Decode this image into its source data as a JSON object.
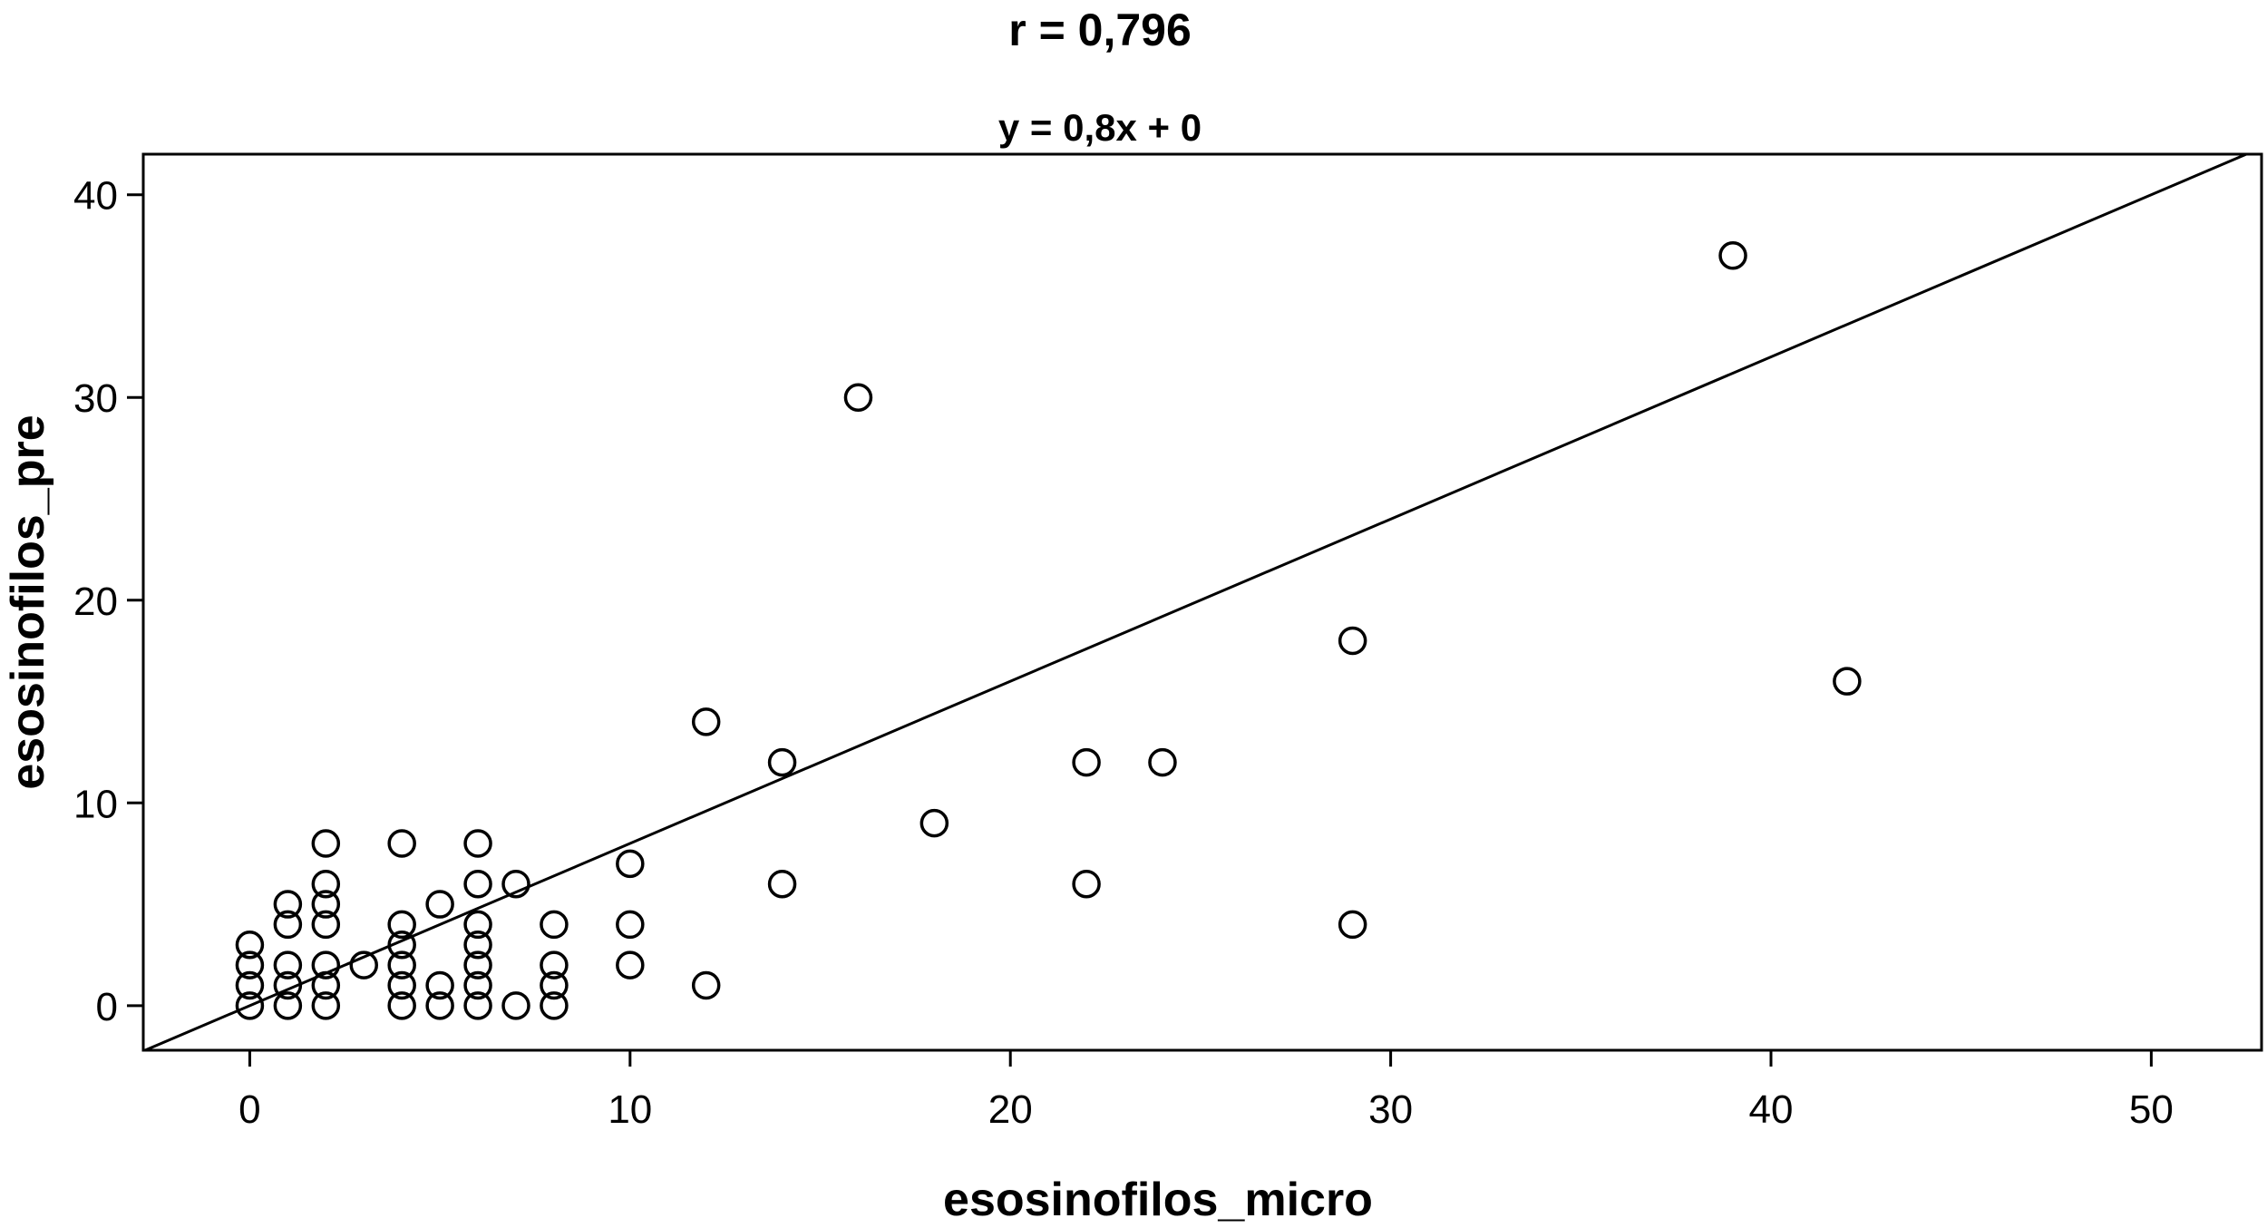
{
  "chart_data": {
    "type": "scatter",
    "title": "r = 0,796",
    "subtitle": "y = 0,8x + 0",
    "xlabel": "esosinofilos_micro",
    "ylabel": "esosinofilos_pre",
    "xlim": [
      -2.8,
      52.9
    ],
    "ylim": [
      -2.2,
      42.0
    ],
    "xticks": [
      0,
      10,
      20,
      30,
      40,
      50
    ],
    "yticks": [
      0,
      10,
      20,
      30,
      40
    ],
    "grid": false,
    "fit_line": {
      "slope": 0.8,
      "intercept": 0
    },
    "points": [
      {
        "x": 0,
        "y": 0
      },
      {
        "x": 0,
        "y": 1
      },
      {
        "x": 0,
        "y": 2
      },
      {
        "x": 0,
        "y": 3
      },
      {
        "x": 1,
        "y": 0
      },
      {
        "x": 1,
        "y": 1
      },
      {
        "x": 1,
        "y": 2
      },
      {
        "x": 1,
        "y": 4
      },
      {
        "x": 1,
        "y": 5
      },
      {
        "x": 2,
        "y": 0
      },
      {
        "x": 2,
        "y": 1
      },
      {
        "x": 2,
        "y": 2
      },
      {
        "x": 2,
        "y": 4
      },
      {
        "x": 2,
        "y": 5
      },
      {
        "x": 2,
        "y": 6
      },
      {
        "x": 2,
        "y": 8
      },
      {
        "x": 3,
        "y": 2
      },
      {
        "x": 4,
        "y": 0
      },
      {
        "x": 4,
        "y": 1
      },
      {
        "x": 4,
        "y": 2
      },
      {
        "x": 4,
        "y": 3
      },
      {
        "x": 4,
        "y": 4
      },
      {
        "x": 4,
        "y": 8
      },
      {
        "x": 5,
        "y": 0
      },
      {
        "x": 5,
        "y": 1
      },
      {
        "x": 5,
        "y": 5
      },
      {
        "x": 6,
        "y": 0
      },
      {
        "x": 6,
        "y": 1
      },
      {
        "x": 6,
        "y": 2
      },
      {
        "x": 6,
        "y": 3
      },
      {
        "x": 6,
        "y": 4
      },
      {
        "x": 6,
        "y": 6
      },
      {
        "x": 6,
        "y": 8
      },
      {
        "x": 7,
        "y": 0
      },
      {
        "x": 7,
        "y": 6
      },
      {
        "x": 8,
        "y": 0
      },
      {
        "x": 8,
        "y": 1
      },
      {
        "x": 8,
        "y": 2
      },
      {
        "x": 8,
        "y": 4
      },
      {
        "x": 10,
        "y": 2
      },
      {
        "x": 10,
        "y": 4
      },
      {
        "x": 10,
        "y": 7
      },
      {
        "x": 12,
        "y": 1
      },
      {
        "x": 12,
        "y": 14
      },
      {
        "x": 14,
        "y": 6
      },
      {
        "x": 14,
        "y": 12
      },
      {
        "x": 16,
        "y": 30
      },
      {
        "x": 18,
        "y": 9
      },
      {
        "x": 22,
        "y": 6
      },
      {
        "x": 22,
        "y": 12
      },
      {
        "x": 24,
        "y": 12
      },
      {
        "x": 29,
        "y": 4
      },
      {
        "x": 29,
        "y": 18
      },
      {
        "x": 39,
        "y": 37
      },
      {
        "x": 42,
        "y": 16
      }
    ]
  }
}
